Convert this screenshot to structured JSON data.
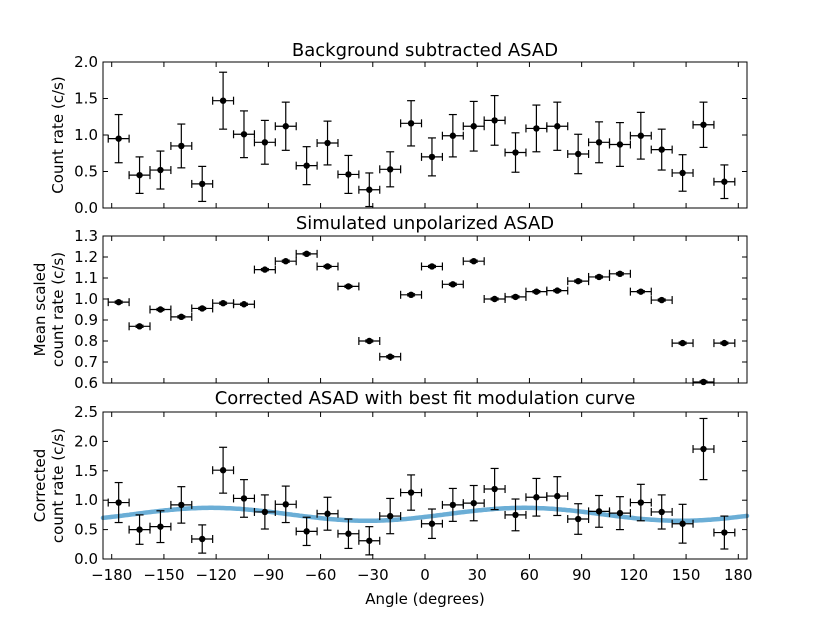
{
  "chart_data": [
    {
      "type": "scatter",
      "title": "Background subtracted ASAD",
      "xlabel": "",
      "ylabel": [
        "Count rate (c/s)"
      ],
      "xlim": [
        -185,
        185
      ],
      "ylim": [
        0.0,
        2.0
      ],
      "yticks": [
        0.0,
        0.5,
        1.0,
        1.5,
        2.0
      ],
      "ytick_labels": [
        "0.0",
        "0.5",
        "1.0",
        "1.5",
        "2.0"
      ],
      "xerr": 6,
      "x": [
        -176,
        -164,
        -152,
        -140,
        -128,
        -116,
        -104,
        -92,
        -80,
        -68,
        -56,
        -44,
        -32,
        -20,
        -8,
        4,
        16,
        28,
        40,
        52,
        64,
        76,
        88,
        100,
        112,
        124,
        136,
        148,
        160,
        172
      ],
      "y": [
        0.95,
        0.45,
        0.52,
        0.85,
        0.33,
        1.47,
        1.01,
        0.9,
        1.12,
        0.58,
        0.89,
        0.46,
        0.25,
        0.53,
        1.16,
        0.7,
        0.99,
        1.12,
        1.2,
        0.76,
        1.09,
        1.12,
        0.74,
        0.9,
        0.87,
        0.99,
        0.8,
        0.48,
        1.14,
        0.36
      ],
      "yerr": [
        0.33,
        0.25,
        0.26,
        0.3,
        0.24,
        0.39,
        0.32,
        0.3,
        0.33,
        0.26,
        0.3,
        0.26,
        0.23,
        0.24,
        0.31,
        0.26,
        0.29,
        0.34,
        0.34,
        0.27,
        0.32,
        0.33,
        0.27,
        0.28,
        0.3,
        0.32,
        0.28,
        0.25,
        0.31,
        0.23
      ]
    },
    {
      "type": "scatter",
      "title": "Simulated unpolarized ASAD",
      "xlabel": "",
      "ylabel": [
        "Mean scaled",
        "count rate (c/s)"
      ],
      "xlim": [
        -185,
        185
      ],
      "ylim": [
        0.6,
        1.3
      ],
      "yticks": [
        0.6,
        0.7,
        0.8,
        0.9,
        1.0,
        1.1,
        1.2,
        1.3
      ],
      "ytick_labels": [
        "0.6",
        "0.7",
        "0.8",
        "0.9",
        "1.0",
        "1.1",
        "1.2",
        "1.3"
      ],
      "xerr": 6,
      "x": [
        -176,
        -164,
        -152,
        -140,
        -128,
        -116,
        -104,
        -92,
        -80,
        -68,
        -56,
        -44,
        -32,
        -20,
        -8,
        4,
        16,
        28,
        40,
        52,
        64,
        76,
        88,
        100,
        112,
        124,
        136,
        148,
        160,
        172
      ],
      "y": [
        0.985,
        0.87,
        0.95,
        0.915,
        0.955,
        0.98,
        0.975,
        1.14,
        1.18,
        1.215,
        1.155,
        1.06,
        0.8,
        0.725,
        1.02,
        1.155,
        1.07,
        1.18,
        1.0,
        1.01,
        1.035,
        1.04,
        1.085,
        1.105,
        1.12,
        1.035,
        0.995,
        0.79,
        0.605,
        0.79
      ],
      "yerr": [
        0.005,
        0.005,
        0.005,
        0.005,
        0.005,
        0.005,
        0.005,
        0.005,
        0.005,
        0.005,
        0.005,
        0.005,
        0.005,
        0.005,
        0.005,
        0.005,
        0.005,
        0.005,
        0.005,
        0.005,
        0.005,
        0.005,
        0.005,
        0.005,
        0.005,
        0.005,
        0.005,
        0.005,
        0.005,
        0.005
      ]
    },
    {
      "type": "scatter",
      "title": "Corrected ASAD with best fit modulation curve",
      "xlabel": "Angle (degrees)",
      "ylabel": [
        "Corrected",
        "count rate (c/s)"
      ],
      "xlim": [
        -185,
        185
      ],
      "ylim": [
        0.0,
        2.5
      ],
      "yticks": [
        0.0,
        0.5,
        1.0,
        1.5,
        2.0,
        2.5
      ],
      "ytick_labels": [
        "0.0",
        "0.5",
        "1.0",
        "1.5",
        "2.0",
        "2.5"
      ],
      "xticks": [
        -180,
        -150,
        -120,
        -90,
        -60,
        -30,
        0,
        30,
        60,
        90,
        120,
        150,
        180
      ],
      "xtick_labels": [
        "−180",
        "−150",
        "−120",
        "−90",
        "−60",
        "−30",
        "0",
        "30",
        "60",
        "90",
        "120",
        "150",
        "180"
      ],
      "xerr": 6,
      "x": [
        -176,
        -164,
        -152,
        -140,
        -128,
        -116,
        -104,
        -92,
        -80,
        -68,
        -56,
        -44,
        -32,
        -20,
        -8,
        4,
        16,
        28,
        40,
        52,
        64,
        76,
        88,
        100,
        112,
        124,
        136,
        148,
        160,
        172
      ],
      "y": [
        0.96,
        0.5,
        0.55,
        0.92,
        0.34,
        1.51,
        1.03,
        0.8,
        0.93,
        0.47,
        0.77,
        0.43,
        0.31,
        0.73,
        1.13,
        0.6,
        0.92,
        0.95,
        1.19,
        0.75,
        1.05,
        1.07,
        0.68,
        0.81,
        0.78,
        0.96,
        0.8,
        0.6,
        1.87,
        0.45
      ],
      "yerr": [
        0.34,
        0.25,
        0.27,
        0.31,
        0.24,
        0.39,
        0.32,
        0.29,
        0.31,
        0.24,
        0.28,
        0.25,
        0.24,
        0.3,
        0.3,
        0.25,
        0.28,
        0.3,
        0.35,
        0.27,
        0.32,
        0.33,
        0.26,
        0.27,
        0.28,
        0.31,
        0.29,
        0.33,
        0.52,
        0.28
      ],
      "fit": {
        "name": "best fit modulation curve",
        "color": "#6baed6",
        "mean": 0.76,
        "amplitude": 0.11,
        "phase_deg": 57
      }
    }
  ]
}
